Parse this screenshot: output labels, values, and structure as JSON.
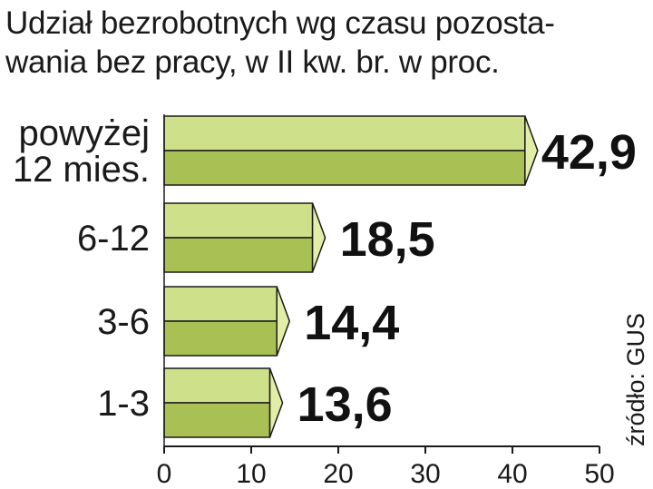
{
  "chart_data": {
    "type": "bar",
    "orientation": "horizontal",
    "title": "Udział bezrobotnych wg czasu pozosta-wania bez pracy, w II kw. br. w proc.",
    "title_lines": [
      "Udział bezrobotnych wg czasu pozosta-",
      "wania bez pracy, w II kw. br. w proc."
    ],
    "categories": [
      [
        "powyżej",
        "12 mies."
      ],
      [
        "6-12"
      ],
      [
        "3-6"
      ],
      [
        "1-3"
      ]
    ],
    "values": [
      42.9,
      18.5,
      14.4,
      13.6
    ],
    "value_labels": [
      "42,9",
      "18,5",
      "14,4",
      "13,6"
    ],
    "xlim": [
      0,
      50
    ],
    "x_ticks": [
      "0",
      "10",
      "20",
      "30",
      "40",
      "50"
    ],
    "source": "źródło: GUS",
    "colors": {
      "bar_top": "#cfe08a",
      "bar_bottom": "#a9c055",
      "bar_tip": "#e2eea8",
      "outline": "#1a1a1a"
    },
    "grid": false,
    "legend": "none"
  }
}
